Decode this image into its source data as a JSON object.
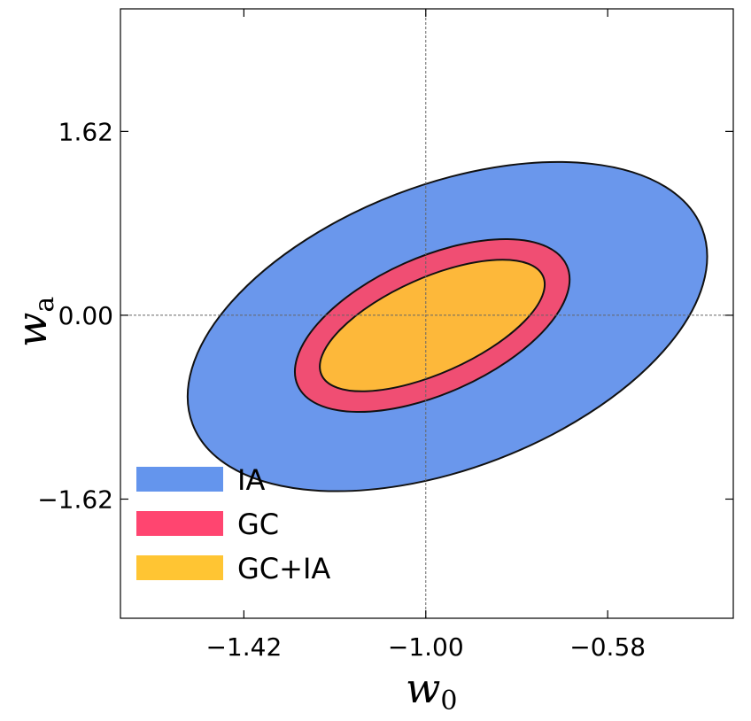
{
  "chart_data": {
    "type": "contour",
    "title": "",
    "xlabel": {
      "main": "w",
      "sub": "0"
    },
    "ylabel": {
      "main": "w",
      "sub": "a"
    },
    "xlim": [
      -1.705,
      -0.29
    ],
    "ylim": [
      -2.67,
      2.7
    ],
    "x_ticks": [
      -1.42,
      -1.0,
      -0.58
    ],
    "x_tick_labels": [
      "−1.42",
      "−1.00",
      "−0.58"
    ],
    "y_ticks": [
      1.62,
      0.0,
      -1.62
    ],
    "y_tick_labels": [
      "1.62",
      "0.00",
      "−1.62"
    ],
    "fiducial": {
      "w0": -1.0,
      "wa": 0.0
    },
    "series": [
      {
        "name": "IA",
        "color": "#6a97ec",
        "legend_color": "#6495ed",
        "center": [
          -0.95,
          -0.1
        ],
        "semi_axis_major": 0.63,
        "semi_axis_minor_wa": 1.25,
        "tilt_deg": -21
      },
      {
        "name": "GC",
        "color": "#f04e73",
        "legend_color": "#ff4570",
        "center": [
          -0.985,
          -0.09
        ],
        "semi_axis_major": 0.34,
        "semi_axis_minor_wa": 0.6,
        "tilt_deg": -24
      },
      {
        "name": "GC+IA",
        "color": "#fdb83a",
        "legend_color": "#ffc533",
        "center": [
          -0.985,
          -0.09
        ],
        "semi_axis_major": 0.28,
        "semi_axis_minor_wa": 0.42,
        "tilt_deg": -24
      }
    ],
    "legend_position": "lower-left",
    "grid": false
  }
}
